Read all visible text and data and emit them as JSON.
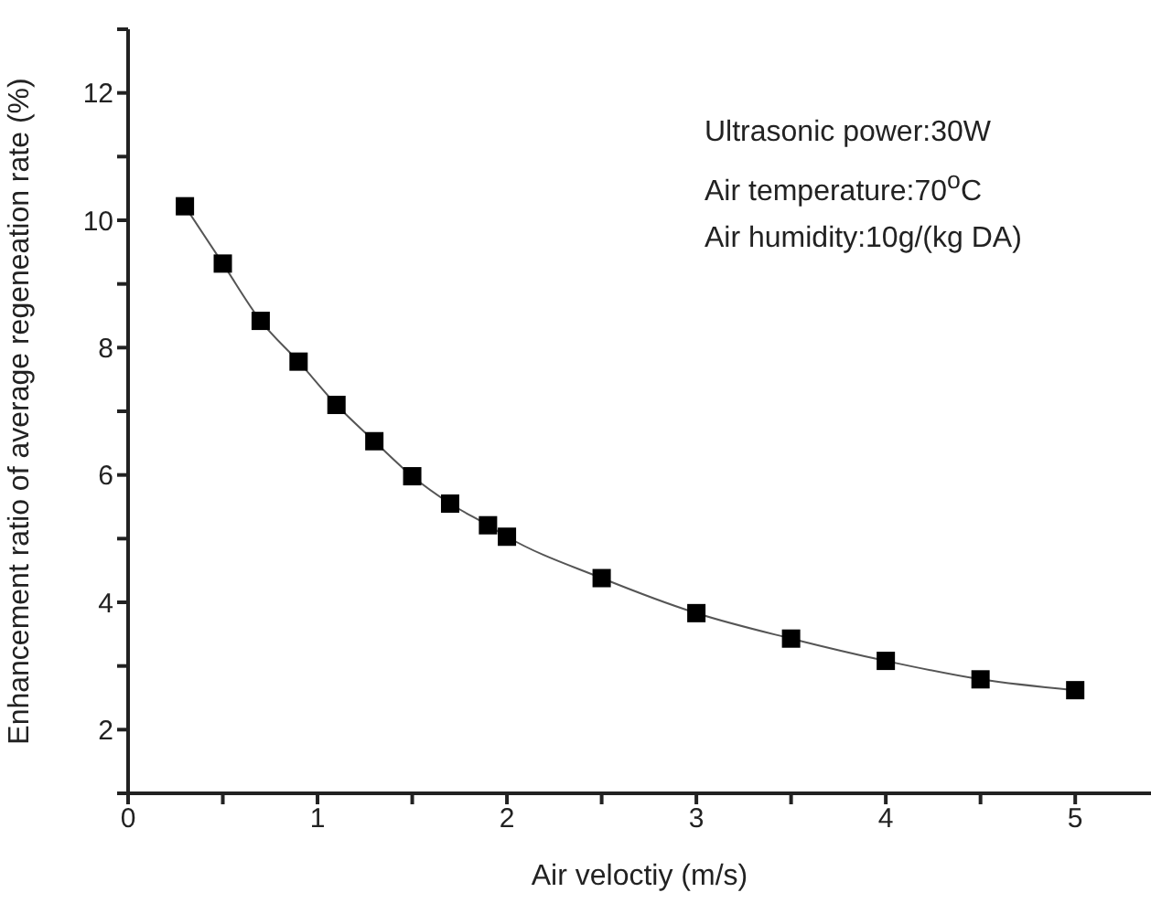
{
  "chart_data": {
    "type": "line",
    "xlabel": "Air veloctiy (m/s)",
    "ylabel": "Enhancement ratio of average regeneation rate (%)",
    "x": [
      0.3,
      0.5,
      0.7,
      0.9,
      1.1,
      1.3,
      1.5,
      1.7,
      1.9,
      2.0,
      2.5,
      3.0,
      3.5,
      4.0,
      4.5,
      5.0
    ],
    "series": [
      {
        "color": "#000000",
        "values": [
          10.22,
          9.32,
          8.42,
          7.78,
          7.1,
          6.53,
          5.98,
          5.55,
          5.21,
          5.03,
          4.38,
          3.83,
          3.43,
          3.08,
          2.79,
          2.62
        ]
      }
    ],
    "xlim": [
      0,
      5.4
    ],
    "xticks": [
      0,
      {
        "value": 0.5,
        "label": null
      },
      1,
      {
        "value": 1.5,
        "label": null
      },
      2,
      {
        "value": 2.5,
        "label": null
      },
      3,
      {
        "value": 3.5,
        "label": null
      },
      4,
      {
        "value": 4.5,
        "label": null
      },
      5
    ],
    "ylim": [
      1,
      13
    ],
    "yticks": [
      {
        "value": 1,
        "label": null
      },
      2,
      {
        "value": 3,
        "label": null
      },
      4,
      {
        "value": 5,
        "label": null
      },
      6,
      {
        "value": 7,
        "label": null
      },
      8,
      {
        "value": 9,
        "label": null
      },
      10,
      {
        "value": 11,
        "label": null
      },
      12,
      {
        "value": 13,
        "label": null
      }
    ],
    "marker": "square",
    "grid": false,
    "legend": false,
    "annotations": [
      "Ultrasonic power:30W",
      "Air temperature:70$^{o}$C",
      "Air humidity:10g/(kg DA)"
    ]
  }
}
